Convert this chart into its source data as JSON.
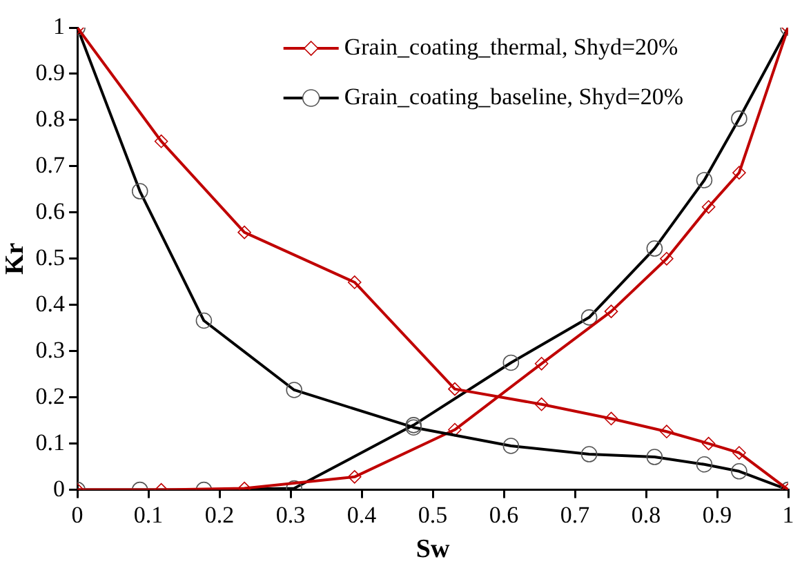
{
  "chart_data": {
    "type": "line",
    "xlabel": "Sw",
    "ylabel": "Kr",
    "xlim": [
      0,
      1
    ],
    "xticks": [
      0,
      0.1,
      0.2,
      0.3,
      0.4,
      0.5,
      0.6,
      0.7,
      0.8,
      0.9,
      1
    ],
    "ylim": [
      0,
      1
    ],
    "yticks": [
      0,
      0.1,
      0.2,
      0.3,
      0.4,
      0.5,
      0.6,
      0.7,
      0.8,
      0.9,
      1
    ],
    "grid": false,
    "legend": "top right",
    "series": [
      {
        "name": "Grain_coating_thermal, Shyd=20%",
        "color": "#c00000",
        "marker": "diamond",
        "x": [
          0,
          0.118,
          0.235,
          0.39,
          0.531,
          0.653,
          0.751,
          0.829,
          0.888,
          0.931,
          1
        ],
        "values": [
          1,
          0.754,
          0.557,
          0.449,
          0.218,
          0.185,
          0.154,
          0.126,
          0.1,
          0.08,
          0
        ]
      },
      {
        "name": "Grain_coating_baseline, Shyd=20%",
        "color": "#000000",
        "marker": "circle",
        "x": [
          0,
          0.088,
          0.178,
          0.305,
          0.473,
          0.61,
          0.72,
          0.812,
          0.882,
          0.931,
          1
        ],
        "values": [
          1,
          0.646,
          0.366,
          0.216,
          0.135,
          0.095,
          0.077,
          0.071,
          0.055,
          0.04,
          0
        ]
      },
      {
        "color": "#c00000",
        "marker": "diamond",
        "x": [
          0,
          0.118,
          0.235,
          0.39,
          0.531,
          0.653,
          0.751,
          0.829,
          0.888,
          0.931,
          1
        ],
        "values": [
          0,
          0,
          0.003,
          0.028,
          0.13,
          0.273,
          0.386,
          0.5,
          0.612,
          0.686,
          1
        ]
      },
      {
        "color": "#000000",
        "marker": "circle",
        "x": [
          0,
          0.088,
          0.178,
          0.305,
          0.473,
          0.61,
          0.72,
          0.812,
          0.882,
          0.931,
          1
        ],
        "values": [
          0,
          0,
          0,
          0.003,
          0.14,
          0.275,
          0.373,
          0.522,
          0.67,
          0.803,
          1
        ]
      }
    ]
  }
}
